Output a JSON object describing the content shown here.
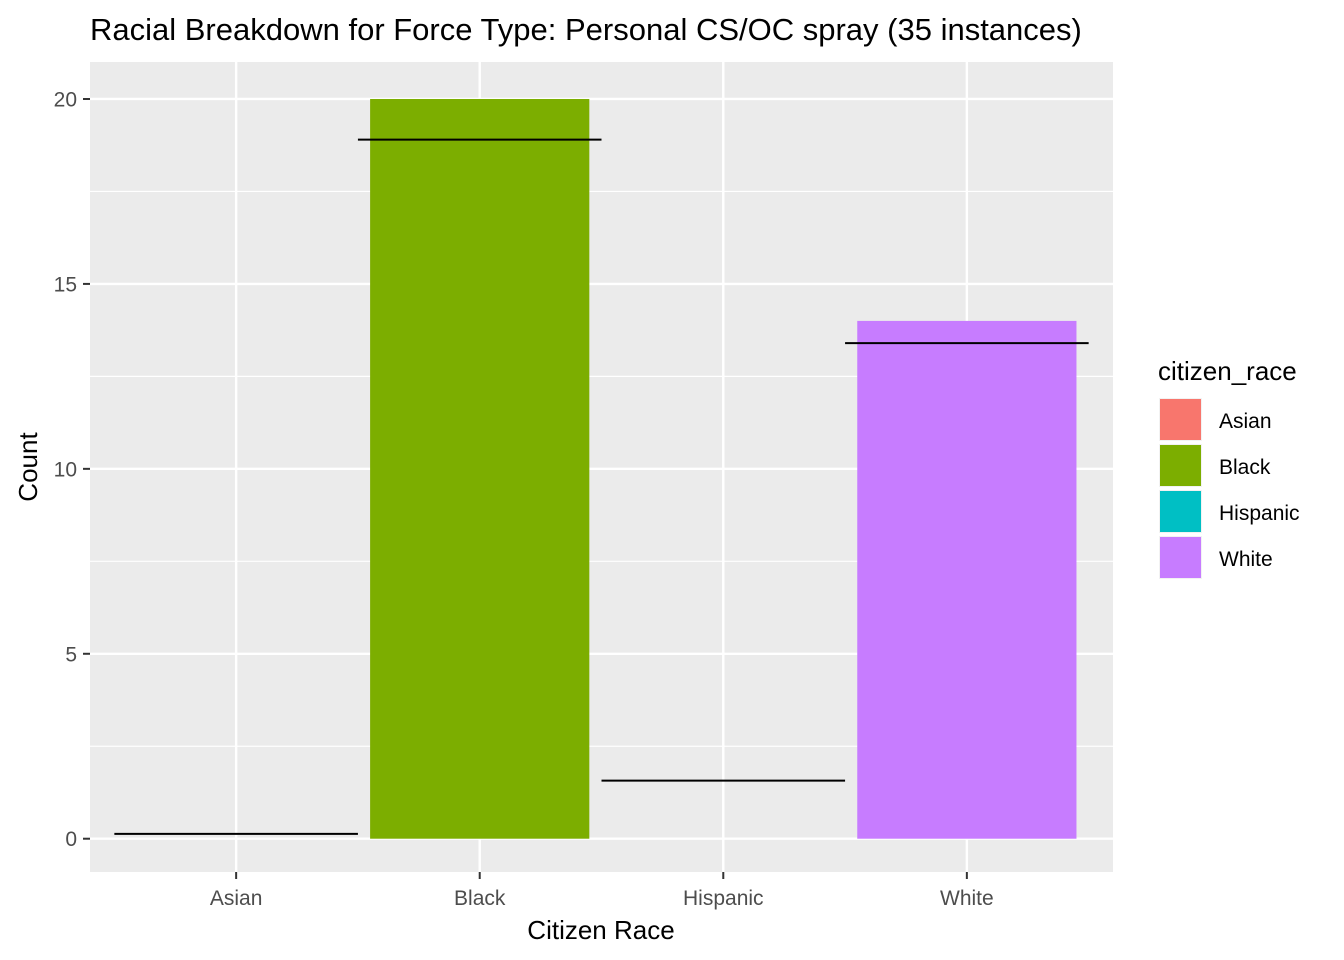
{
  "chart_data": {
    "type": "bar",
    "title": "Racial Breakdown for Force Type: Personal CS/OC spray (35 instances)",
    "xlabel": "Citizen Race",
    "ylabel": "Count",
    "categories": [
      "Asian",
      "Black",
      "Hispanic",
      "White"
    ],
    "values": [
      0,
      20,
      0,
      14
    ],
    "bar_colors": [
      "#F8766D",
      "#7CAE00",
      "#00BFC4",
      "#C77CFF"
    ],
    "reference_lines": [
      0.13,
      18.9,
      1.57,
      13.4
    ],
    "ylim": [
      -0.9,
      21
    ],
    "y_ticks": [
      0,
      5,
      10,
      15,
      20
    ],
    "grid": true,
    "panel_background": "#EBEBEB",
    "grid_color": "#FFFFFF",
    "reference_line_color": "#000000",
    "legend": {
      "title": "citizen_race",
      "placement": "right",
      "entries": [
        {
          "label": "Asian",
          "color": "#F8766D"
        },
        {
          "label": "Black",
          "color": "#7CAE00"
        },
        {
          "label": "Hispanic",
          "color": "#00BFC4"
        },
        {
          "label": "White",
          "color": "#C77CFF"
        }
      ]
    }
  }
}
